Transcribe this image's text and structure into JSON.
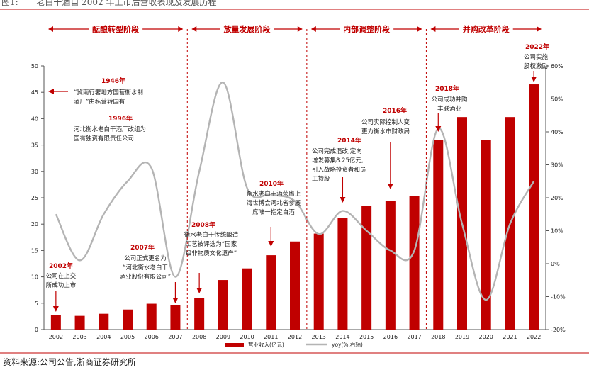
{
  "figure": {
    "label": "图1:",
    "title": "老白干酒自 2002 年上市后营收表现及发展历程",
    "source": "资料来源:公司公告,浙商证券研究所"
  },
  "colors": {
    "bar": "#c00000",
    "yoy_line": "#b4b4b4",
    "accent": "#c00000",
    "text": "#222222",
    "axis": "#555555"
  },
  "chart_data": {
    "type": "bar",
    "categories": [
      "2002",
      "2003",
      "2004",
      "2005",
      "2006",
      "2007",
      "2008",
      "2009",
      "2010",
      "2011",
      "2012",
      "2013",
      "2014",
      "2015",
      "2016",
      "2017",
      "2018",
      "2019",
      "2020",
      "2021",
      "2022"
    ],
    "series": [
      {
        "name": "营业收入(亿元)",
        "type": "bar",
        "axis": "left",
        "values": [
          2.7,
          2.6,
          3.0,
          3.8,
          4.9,
          4.7,
          6.0,
          9.4,
          11.6,
          14.1,
          16.7,
          18.2,
          21.2,
          23.4,
          24.4,
          25.3,
          35.9,
          40.3,
          36.0,
          40.3,
          46.5
        ]
      },
      {
        "name": "yoy(%,右轴)",
        "type": "line",
        "axis": "right",
        "values": [
          15,
          1,
          15,
          25,
          29,
          -4,
          28,
          55,
          23,
          21,
          19,
          9,
          16,
          10,
          4,
          4,
          41,
          12,
          -11,
          12,
          25
        ]
      }
    ],
    "y_left": {
      "lim": [
        0,
        50
      ],
      "ticks": [
        "0",
        "5",
        "10",
        "15",
        "20",
        "25",
        "30",
        "35",
        "40",
        "45",
        "50"
      ]
    },
    "y_right": {
      "lim": [
        -20,
        60
      ],
      "ticks": [
        "-20%",
        "-10%",
        "0%",
        "10%",
        "20%",
        "30%",
        "40%",
        "50%",
        "60%"
      ]
    },
    "legend": {
      "position": "bottom"
    },
    "stages": [
      {
        "label": "酝酿转型阶段",
        "from": "2002",
        "to": "2007"
      },
      {
        "label": "放量发展阶段",
        "from": "2008",
        "to": "2012"
      },
      {
        "label": "内部调整阶段",
        "from": "2013",
        "to": "2017"
      },
      {
        "label": "并购改革阶段",
        "from": "2018",
        "to": "2022"
      }
    ],
    "annotations": [
      {
        "year": "1946年",
        "lines": [
          "“冀南行署地方国营衡水制",
          "酒厂”由私营转国有"
        ],
        "arrow": "left"
      },
      {
        "year": "1996年",
        "lines": [
          "河北衡水老白干酒厂改组为",
          "国有独资有限责任公司"
        ],
        "arrow": "none"
      },
      {
        "year": "2002年",
        "lines": [
          "公司在上交",
          "所成功上市"
        ],
        "arrow": "2002"
      },
      {
        "year": "2007年",
        "lines": [
          "公司正式更名为",
          "“河北衡水老白干",
          "酒业股份有限公司”"
        ],
        "arrow": "2007"
      },
      {
        "year": "2008年",
        "lines": [
          "衡水老白干传统酿造",
          "工艺被评选为“国家",
          "级非物质文化遗产”"
        ],
        "arrow": "2008"
      },
      {
        "year": "2010年",
        "lines": [
          "衡水老白干酒荣膺上",
          "海世博会河北省参展",
          "席唯一指定白酒"
        ],
        "arrow": "2011"
      },
      {
        "year": "2014年",
        "lines": [
          "公司完成混改,定向",
          "增发募集8.25亿元,",
          "引入战略投资者和员",
          "工持股"
        ],
        "arrow": "2014"
      },
      {
        "year": "2016年",
        "lines": [
          "公司实际控制人变",
          "更为衡水市财政局"
        ],
        "arrow": "2016"
      },
      {
        "year": "2018年",
        "lines": [
          "公司成功并购",
          "丰联酒业"
        ],
        "arrow": "2018"
      },
      {
        "year": "2022年",
        "lines": [
          "公司实施",
          "股权激励"
        ],
        "arrow": "2022"
      }
    ]
  }
}
